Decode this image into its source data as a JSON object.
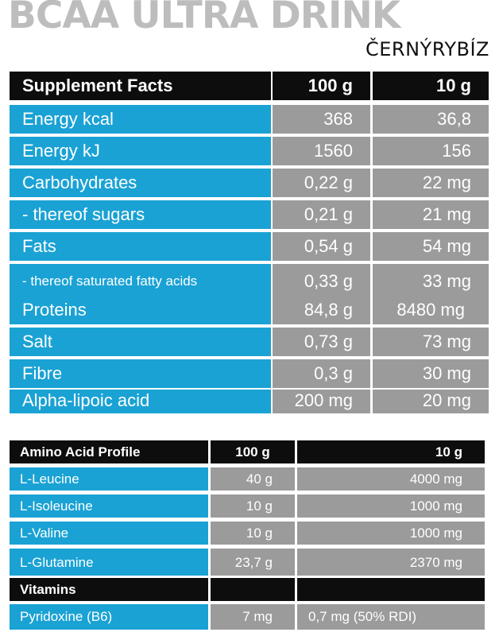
{
  "title": "BCAA ULTRA DRINK",
  "flavor": "ČERNÝRYBÍZ",
  "supplement": {
    "header": {
      "label": "Supplement Facts",
      "col1": "100 g",
      "col2": "10 g"
    },
    "rows": [
      {
        "label": "Energy  kcal",
        "v1": "368",
        "v2": "36,8"
      },
      {
        "label": "Energy  kJ",
        "v1": "1560",
        "v2": "156"
      },
      {
        "label": "Carbohydrates",
        "v1": "0,22 g",
        "v2": "22 mg"
      },
      {
        "label": "- thereof sugars",
        "v1": "0,21 g",
        "v2": "21 mg"
      },
      {
        "label": "Fats",
        "v1": "0,54 g",
        "v2": "54 mg"
      },
      {
        "label": "- thereof saturated   fatty  acids",
        "v1": "0,33 g",
        "v2": "33 mg"
      },
      {
        "label": "Proteins",
        "v1": "84,8 g",
        "v2": "8480 mg"
      },
      {
        "label": "Salt",
        "v1": "0,73 g",
        "v2": "73 mg"
      },
      {
        "label": "Fibre",
        "v1": "0,3 g",
        "v2": "30 mg"
      },
      {
        "label": "Alpha-lipoic acid",
        "v1": "200 mg",
        "v2": "20 mg"
      }
    ]
  },
  "amino": {
    "header": {
      "label": "Amino Acid Profile",
      "col1": "100 g",
      "col2": "10 g"
    },
    "rows": [
      {
        "label": "L-Leucine",
        "v1": "40 g",
        "v2": "4000 mg"
      },
      {
        "label": "L-Isoleucine",
        "v1": "10  g",
        "v2": "1000 mg"
      },
      {
        "label": "L-Valine",
        "v1": "10  g",
        "v2": "1000 mg"
      },
      {
        "label": "L-Glutamine",
        "v1": "23,7 g",
        "v2": "2370 mg"
      }
    ],
    "vitamins_header": "Vitamins",
    "vitamin_rows": [
      {
        "label": "Pyridoxine (B6)",
        "v1": "7 mg",
        "v2": "0,7 mg (50% RDI)"
      }
    ]
  }
}
